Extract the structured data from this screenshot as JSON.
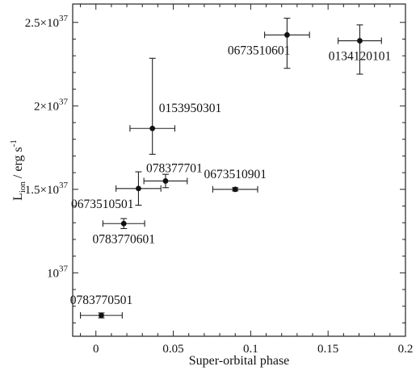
{
  "chart_data": {
    "type": "scatter",
    "xlabel": "Super-orbital phase",
    "ylabel_main": "L",
    "ylabel_sub": "ion",
    "ylabel_units": " / erg s",
    "ylabel_sup": "-1",
    "xlim": [
      -0.015,
      0.2
    ],
    "ylim_e37": [
      0.62,
      2.61
    ],
    "grid": false,
    "x_ticks": [
      {
        "value": 0,
        "label": "0"
      },
      {
        "value": 0.05,
        "label": "0.05"
      },
      {
        "value": 0.1,
        "label": "0.1"
      },
      {
        "value": 0.15,
        "label": "0.15"
      },
      {
        "value": 0.2,
        "label": "0.2"
      }
    ],
    "y_ticks": [
      {
        "value": 1.0,
        "mantissa": "",
        "base": "10",
        "exp": "37"
      },
      {
        "value": 1.5,
        "mantissa": "1.5×",
        "base": "10",
        "exp": "37"
      },
      {
        "value": 2.0,
        "mantissa": "2×",
        "base": "10",
        "exp": "37"
      },
      {
        "value": 2.5,
        "mantissa": "2.5×",
        "base": "10",
        "exp": "37"
      }
    ],
    "points": [
      {
        "label": "0783770501",
        "x": 0.0035,
        "xerr": 0.0135,
        "y": 0.745,
        "ylo": 0.73,
        "yhi": 0.76,
        "label_pos": "above"
      },
      {
        "label": "0783770601",
        "x": 0.018,
        "xerr": 0.0135,
        "y": 1.295,
        "ylo": 1.265,
        "yhi": 1.325,
        "label_pos": "below"
      },
      {
        "label": "0673510501",
        "x": 0.0275,
        "xerr": 0.0145,
        "y": 1.505,
        "ylo": 1.405,
        "yhi": 1.605,
        "label_pos": "below-left"
      },
      {
        "label": "078377701",
        "x": 0.045,
        "xerr": 0.014,
        "y": 1.55,
        "ylo": 1.51,
        "yhi": 1.59,
        "label_pos": "above-right"
      },
      {
        "label": "0153950301",
        "x": 0.0365,
        "xerr": 0.0145,
        "y": 1.865,
        "ylo": 1.71,
        "yhi": 2.285,
        "label_pos": "right"
      },
      {
        "label": "0673510901",
        "x": 0.09,
        "xerr": 0.0145,
        "y": 1.5,
        "ylo": 1.49,
        "yhi": 1.51,
        "label_pos": "above"
      },
      {
        "label": "0673510601",
        "x": 0.1235,
        "xerr": 0.0145,
        "y": 2.425,
        "ylo": 2.225,
        "yhi": 2.525,
        "label_pos": "below-left"
      },
      {
        "label": "0134120101",
        "x": 0.1705,
        "xerr": 0.014,
        "y": 2.39,
        "ylo": 2.19,
        "yhi": 2.485,
        "label_pos": "below"
      }
    ]
  }
}
